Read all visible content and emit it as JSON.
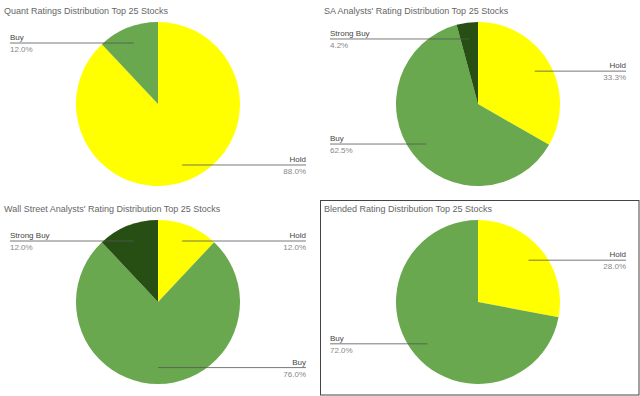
{
  "chart_data": [
    {
      "type": "pie",
      "title": "Quant Ratings Distribution Top 25 Stocks",
      "categories": [
        "Hold",
        "Buy"
      ],
      "values": [
        88,
        12
      ],
      "value_labels": [
        "88.0%",
        "12.0%"
      ],
      "colors": [
        "#ffff00",
        "#6aa84f"
      ],
      "data_labels": true
    },
    {
      "type": "pie",
      "title": "SA Analysts' Rating Distribution Top 25 Stocks",
      "categories": [
        "Hold",
        "Buy",
        "Strong Buy"
      ],
      "values": [
        33.3,
        62.5,
        4.2
      ],
      "value_labels": [
        "33.3%",
        "62.5%",
        "4.2%"
      ],
      "colors": [
        "#ffff00",
        "#6aa84f",
        "#274e13"
      ],
      "data_labels": true
    },
    {
      "type": "pie",
      "title": "Wall Street Analysts' Rating Distribution Top 25 Stocks",
      "categories": [
        "Hold",
        "Buy",
        "Strong Buy"
      ],
      "values": [
        12,
        76,
        12
      ],
      "value_labels": [
        "12.0%",
        "76.0%",
        "12.0%"
      ],
      "colors": [
        "#ffff00",
        "#6aa84f",
        "#274e13"
      ],
      "data_labels": true
    },
    {
      "type": "pie",
      "title": "Blended Rating Distribution Top 25 Stocks",
      "categories": [
        "Hold",
        "Buy"
      ],
      "values": [
        28,
        72
      ],
      "value_labels": [
        "28.0%",
        "72.0%"
      ],
      "colors": [
        "#ffff00",
        "#6aa84f"
      ],
      "data_labels": true
    }
  ]
}
